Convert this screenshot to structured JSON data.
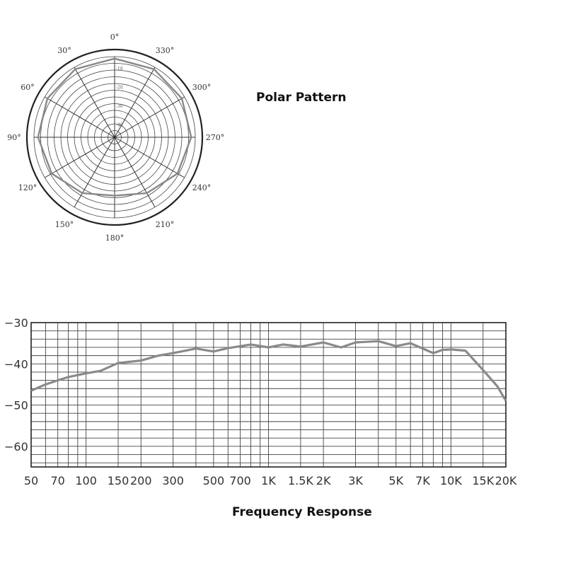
{
  "chart_data": [
    {
      "type": "polar",
      "caption": "Polar Pattern",
      "angle_labels": [
        {
          "text": "0°",
          "angle": 0
        },
        {
          "text": "30°",
          "angle": 30
        },
        {
          "text": "60°",
          "angle": 60
        },
        {
          "text": "90°",
          "angle": 90
        },
        {
          "text": "120°",
          "angle": 120
        },
        {
          "text": "150°",
          "angle": 150
        },
        {
          "text": "180°",
          "angle": 180
        },
        {
          "text": "210°",
          "angle": 210
        },
        {
          "text": "240°",
          "angle": 240
        },
        {
          "text": "270°",
          "angle": 270
        },
        {
          "text": "300°",
          "angle": 300
        },
        {
          "text": "330°",
          "angle": 330
        }
      ],
      "radial_range_db": [
        -40,
        0
      ],
      "radial_labels": [
        "-10",
        "-20",
        "-30",
        "-40"
      ],
      "pattern": {
        "angles": [
          0,
          30,
          60,
          90,
          120,
          150,
          180,
          210,
          240,
          270,
          300,
          330
        ],
        "values_db": [
          -1,
          -1,
          -1.5,
          -2,
          -4,
          -8,
          -11,
          -8,
          -4,
          -2,
          -1.5,
          -1
        ]
      }
    },
    {
      "type": "line",
      "caption": "Frequency Response",
      "x_scale": "log",
      "xlim": [
        50,
        20000
      ],
      "ylim": [
        -65,
        -30
      ],
      "x_ticks": [
        {
          "label": "50",
          "value": 50
        },
        {
          "label": "70",
          "value": 70
        },
        {
          "label": "100",
          "value": 100
        },
        {
          "label": "150",
          "value": 150
        },
        {
          "label": "200",
          "value": 200
        },
        {
          "label": "300",
          "value": 300
        },
        {
          "label": "500",
          "value": 500
        },
        {
          "label": "700",
          "value": 700
        },
        {
          "label": "1K",
          "value": 1000
        },
        {
          "label": "1.5K",
          "value": 1500
        },
        {
          "label": "2K",
          "value": 2000
        },
        {
          "label": "3K",
          "value": 3000
        },
        {
          "label": "5K",
          "value": 5000
        },
        {
          "label": "7K",
          "value": 7000
        },
        {
          "label": "10K",
          "value": 10000
        },
        {
          "label": "15K",
          "value": 15000
        },
        {
          "label": "20K",
          "value": 20000
        }
      ],
      "y_ticks": [
        {
          "label": "−30",
          "value": -30
        },
        {
          "label": "−40",
          "value": -40
        },
        {
          "label": "−50",
          "value": -50
        },
        {
          "label": "−60",
          "value": -60
        }
      ],
      "grid": true,
      "series": [
        {
          "x": [
            50,
            60,
            70,
            80,
            100,
            120,
            150,
            200,
            250,
            300,
            400,
            500,
            600,
            800,
            1000,
            1200,
            1500,
            2000,
            2500,
            3000,
            4000,
            5000,
            6000,
            8000,
            9000,
            10000,
            12000,
            15000,
            18000,
            20000
          ],
          "y": [
            -46.5,
            -45,
            -44,
            -43.2,
            -42.3,
            -41.7,
            -39.8,
            -39.2,
            -38,
            -37.4,
            -36.3,
            -37,
            -36.2,
            -35.3,
            -36,
            -35.3,
            -35.8,
            -34.8,
            -36,
            -34.8,
            -34.5,
            -35.7,
            -35,
            -37.4,
            -36.6,
            -36.5,
            -36.8,
            -41.5,
            -45.5,
            -49
          ]
        }
      ]
    }
  ]
}
